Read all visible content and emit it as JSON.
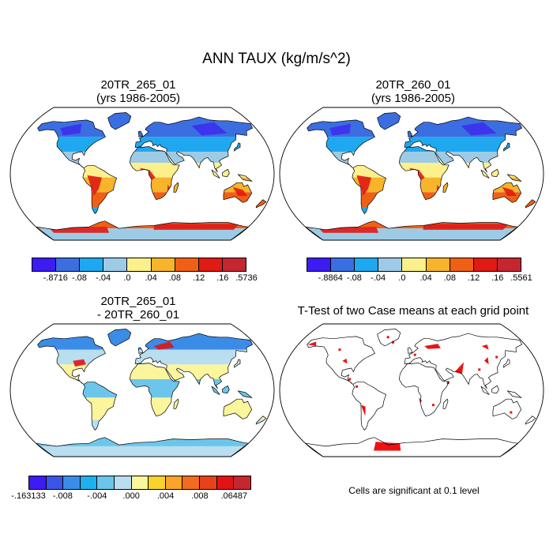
{
  "title": "ANN TAUX (kg/m/s^2)",
  "panels": [
    {
      "id": "p1",
      "title_line1": "20TR_265_01",
      "title_line2": "(yrs 1986-2005)"
    },
    {
      "id": "p2",
      "title_line1": "20TR_260_01",
      "title_line2": "(yrs 1986-2005)"
    },
    {
      "id": "p3",
      "title_line1": "20TR_265_01",
      "title_line2": "- 20TR_260_01"
    },
    {
      "id": "p4",
      "title_line1": "T-Test of two Case means at each grid point",
      "title_line2": ""
    }
  ],
  "colorbars": [
    {
      "id": "cb1",
      "colors": [
        "#3d1cf2",
        "#3b6ee0",
        "#1fa8ef",
        "#9dcbe6",
        "#fbf08b",
        "#f8b42a",
        "#ef6016",
        "#e01a14",
        "#c42730"
      ],
      "labels": [
        "-.8716",
        "-.08",
        "-.04",
        ".0",
        ".04",
        ".08",
        ".12",
        ".16",
        ".5736"
      ]
    },
    {
      "id": "cb2",
      "colors": [
        "#3d1cf2",
        "#3b6ee0",
        "#1fa8ef",
        "#9dcbe6",
        "#fbf08b",
        "#f8b42a",
        "#ef6016",
        "#e01a14",
        "#c42730"
      ],
      "labels": [
        "-.8864",
        "-.08",
        "-.04",
        ".0",
        ".04",
        ".08",
        ".12",
        ".16",
        ".5561"
      ]
    },
    {
      "id": "cb3",
      "colors": [
        "#3d1cf2",
        "#3b55e6",
        "#3b8ce6",
        "#1fb0ef",
        "#6cc6ec",
        "#b8def0",
        "#fbf59b",
        "#f8d22f",
        "#f8a52a",
        "#f26b1f",
        "#e8421a",
        "#e01414",
        "#c42730"
      ],
      "labels": [
        "-.163133",
        "-.008",
        "-.004",
        ".000",
        ".004",
        ".008",
        ".06487"
      ]
    }
  ],
  "significance_note": "Cells are significant at 0.1 level",
  "colors": {
    "sig": "#ee1111",
    "land": "#ffffff",
    "coast": "#000000"
  }
}
